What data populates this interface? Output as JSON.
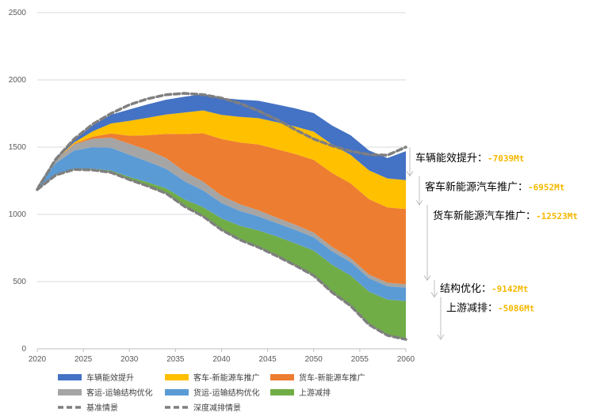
{
  "chart_data": {
    "type": "area",
    "title": "",
    "xlabel": "",
    "ylabel": "",
    "xlim": [
      2020,
      2060
    ],
    "ylim": [
      0,
      2500
    ],
    "x_ticks": [
      "2020",
      "2025",
      "2030",
      "2035",
      "2040",
      "2045",
      "2050",
      "2055",
      "2060"
    ],
    "y_ticks": [
      "0",
      "500",
      "1000",
      "1500",
      "2000",
      "2500"
    ],
    "grid": "horizontal",
    "legend_position": "bottom",
    "x": [
      2020,
      2022,
      2024,
      2026,
      2028,
      2030,
      2032,
      2034,
      2036,
      2038,
      2040,
      2042,
      2044,
      2046,
      2048,
      2050,
      2052,
      2054,
      2056,
      2058,
      2060
    ],
    "series": [
      {
        "name": "上游减排",
        "color": "#70AD47",
        "values": [
          0,
          3,
          6,
          10,
          14,
          20,
          28,
          38,
          52,
          68,
          85,
          105,
          125,
          145,
          165,
          185,
          205,
          225,
          245,
          265,
          285
        ]
      },
      {
        "name": "货运-运输结构优化",
        "color": "#5B9BD5",
        "values": [
          20,
          85,
          135,
          160,
          170,
          165,
          155,
          145,
          135,
          125,
          115,
          110,
          105,
          100,
          100,
          100,
          100,
          100,
          100,
          100,
          100
        ]
      },
      {
        "name": "客运-运输结构优化",
        "color": "#A5A5A5",
        "values": [
          5,
          25,
          45,
          62,
          75,
          82,
          85,
          80,
          72,
          65,
          55,
          50,
          45,
          40,
          38,
          35,
          32,
          30,
          28,
          27,
          25
        ]
      },
      {
        "name": "货车-新能源车推广",
        "color": "#ED7D31",
        "values": [
          0,
          0,
          5,
          15,
          30,
          60,
          110,
          180,
          280,
          360,
          420,
          460,
          490,
          510,
          525,
          540,
          550,
          555,
          560,
          560,
          560
        ]
      },
      {
        "name": "客车-新能源车推广",
        "color": "#FFC000",
        "values": [
          0,
          0,
          10,
          40,
          75,
          110,
          130,
          145,
          160,
          170,
          180,
          190,
          195,
          200,
          205,
          210,
          212,
          213,
          214,
          215,
          215
        ]
      },
      {
        "name": "车辆能效提升",
        "color": "#4472C4",
        "values": [
          0,
          10,
          25,
          45,
          65,
          85,
          100,
          110,
          118,
          122,
          125,
          128,
          130,
          132,
          135,
          138,
          141,
          145,
          148,
          152,
          215
        ]
      },
      {
        "name": "基准情景",
        "color": "#7F7F7F",
        "dashed": true,
        "values": [
          1185,
          1410,
          1560,
          1670,
          1750,
          1815,
          1860,
          1890,
          1900,
          1890,
          1865,
          1825,
          1770,
          1705,
          1630,
          1560,
          1510,
          1470,
          1445,
          1440,
          1500
        ]
      },
      {
        "name": "深度减排情景",
        "color": "#7F7F7F",
        "dashed": true,
        "values": [
          1185,
          1292,
          1334,
          1330,
          1312,
          1258,
          1210,
          1155,
          1058,
          985,
          885,
          810,
          755,
          690,
          620,
          545,
          420,
          320,
          180,
          100,
          70
        ]
      }
    ],
    "annotations": [
      {
        "label": "车辆能效提升：",
        "value": "-7039Mt",
        "top": 1500,
        "bottom": 1285
      },
      {
        "label": "客车新能源汽车推广：",
        "value": "-6952Mt",
        "top": 1285,
        "bottom": 1070
      },
      {
        "label": "货车新能源汽车推广：",
        "value": "-12523Mt",
        "top": 1070,
        "bottom": 510
      },
      {
        "label": "结构优化：",
        "value": "-9142Mt",
        "top": 510,
        "bottom": 385
      },
      {
        "label": "上游减排：",
        "value": "-5086Mt",
        "top": 385,
        "bottom": 70
      }
    ]
  }
}
